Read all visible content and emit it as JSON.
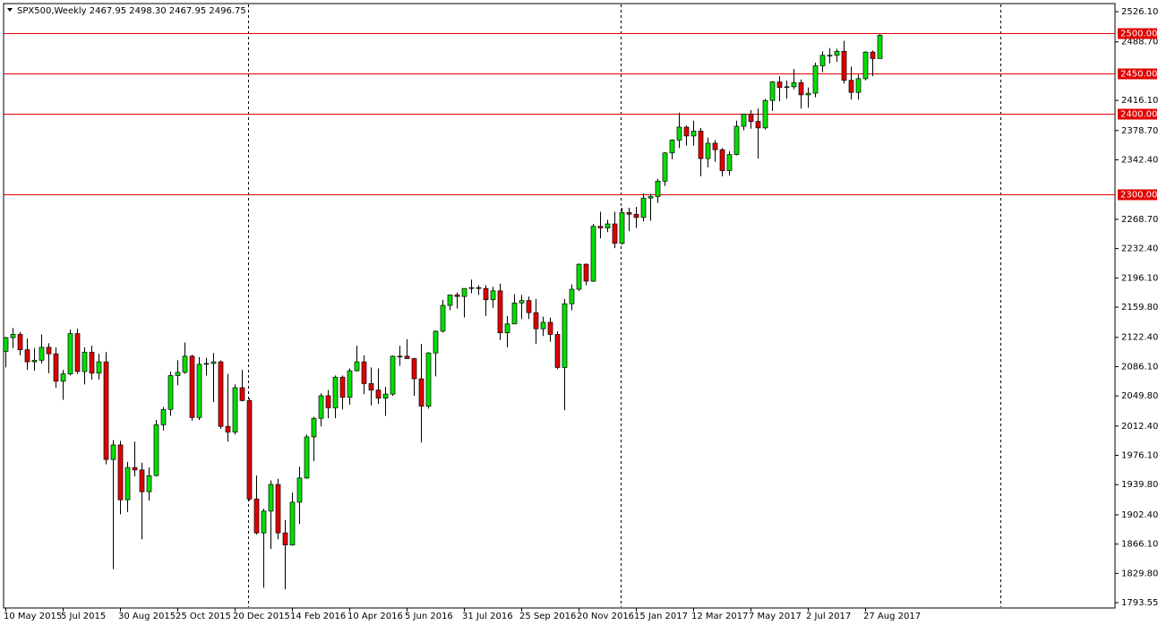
{
  "chart_data": {
    "type": "candlestick",
    "title": "SPX500,Weekly  2467.95 2498.30 2467.95 2496.75",
    "categories": [
      "10 May 2015",
      null,
      null,
      null,
      null,
      null,
      null,
      null,
      "5 Jul 2015",
      null,
      null,
      null,
      null,
      null,
      null,
      null,
      "30 Aug 2015",
      null,
      null,
      null,
      null,
      null,
      null,
      null,
      "25 Oct 2015",
      null,
      null,
      null,
      null,
      null,
      null,
      null,
      "20 Dec 2015",
      null,
      null,
      null,
      null,
      null,
      null,
      null,
      "14 Feb 2016",
      null,
      null,
      null,
      null,
      null,
      null,
      null,
      "10 Apr 2016",
      null,
      null,
      null,
      null,
      null,
      null,
      null,
      "5 Jun 2016",
      null,
      null,
      null,
      null,
      null,
      null,
      null,
      "31 Jul 2016",
      null,
      null,
      null,
      null,
      null,
      null,
      null,
      "25 Sep 2016",
      null,
      null,
      null,
      null,
      null,
      null,
      null,
      "20 Nov 2016",
      null,
      null,
      null,
      null,
      null,
      null,
      null,
      "15 Jan 2017",
      null,
      null,
      null,
      null,
      null,
      null,
      null,
      "12 Mar 2017",
      null,
      null,
      null,
      null,
      null,
      null,
      null,
      "7 May 2017",
      null,
      null,
      null,
      null,
      null,
      null,
      null,
      "2 Jul 2017",
      null,
      null,
      null,
      null,
      null,
      null,
      null,
      "27 Aug 2017",
      null,
      null
    ],
    "open": [
      2105,
      2122,
      2126,
      2107,
      2092,
      2094,
      2110,
      2102,
      2068,
      2077,
      2127,
      2080,
      2104,
      2078,
      2092,
      1971,
      1989,
      1921,
      1961,
      1958,
      1931,
      1951,
      2014,
      2033,
      2075,
      2079,
      2099,
      2023,
      2089,
      2090,
      2092,
      2012,
      2005,
      2060,
      2044,
      1922,
      1880,
      1907,
      1940,
      1880,
      1865,
      1918,
      1948,
      1999,
      2022,
      2050,
      2035,
      2073,
      2048,
      2081,
      2092,
      2065,
      2057,
      2047,
      2052,
      2099,
      2099,
      2096,
      2071,
      2037,
      2103,
      2130,
      2162,
      2175,
      2173,
      2183,
      2184,
      2183,
      2169,
      2180,
      2128,
      2139,
      2165,
      2168,
      2153,
      2133,
      2141,
      2126,
      2085,
      2164,
      2182,
      2213,
      2192,
      2260,
      2258,
      2263,
      2239,
      2277,
      2275,
      2271,
      2295,
      2297,
      2316,
      2351,
      2367,
      2383,
      2372,
      2378,
      2344,
      2363,
      2355,
      2329,
      2349,
      2384,
      2399,
      2390,
      2382,
      2416,
      2439,
      2432,
      2433,
      2438,
      2423,
      2425,
      2459,
      2472,
      2472,
      2477,
      2441,
      2426,
      2443,
      2476,
      2467.95
    ],
    "high": [
      2123,
      2134,
      2129,
      2121,
      2109,
      2126,
      2115,
      2110,
      2082,
      2132,
      2133,
      2110,
      2112,
      2102,
      2104,
      1995,
      1994,
      1968,
      1993,
      1967,
      1961,
      2020,
      2036,
      2080,
      2094,
      2116,
      2101,
      2098,
      2097,
      2103,
      2094,
      2077,
      2064,
      2082,
      2047,
      1951,
      1910,
      1945,
      1947,
      1896,
      1930,
      1962,
      2002,
      2024,
      2053,
      2057,
      2075,
      2075,
      2084,
      2112,
      2100,
      2085,
      2084,
      2061,
      2100,
      2112,
      2120,
      2097,
      2114,
      2104,
      2131,
      2169,
      2175,
      2178,
      2183,
      2194,
      2187,
      2187,
      2185,
      2189,
      2149,
      2176,
      2175,
      2173,
      2170,
      2148,
      2147,
      2130,
      2170,
      2188,
      2214,
      2214,
      2263,
      2278,
      2268,
      2278,
      2283,
      2283,
      2284,
      2301,
      2300,
      2319,
      2352,
      2368,
      2401,
      2385,
      2391,
      2382,
      2370,
      2367,
      2357,
      2353,
      2391,
      2399,
      2404,
      2406,
      2418,
      2440,
      2446,
      2441,
      2455,
      2442,
      2432,
      2463,
      2477,
      2481,
      2480,
      2490,
      2458,
      2448,
      2477,
      2478,
      2498.3
    ],
    "low": [
      2085,
      2109,
      2100,
      2082,
      2081,
      2090,
      2078,
      2060,
      2045,
      2075,
      2077,
      2064,
      2070,
      2070,
      1965,
      1835,
      1903,
      1906,
      1950,
      1872,
      1920,
      1950,
      2007,
      2025,
      2063,
      2077,
      2019,
      2020,
      2075,
      2042,
      2009,
      1993,
      2002,
      2043,
      1920,
      1878,
      1812,
      1860,
      1872,
      1810,
      1864,
      1891,
      1947,
      1969,
      2012,
      2022,
      2022,
      2033,
      2039,
      2080,
      2052,
      2038,
      2040,
      2025,
      2050,
      2087,
      2096,
      2050,
      1992,
      2034,
      2074,
      2128,
      2156,
      2158,
      2147,
      2177,
      2175,
      2149,
      2159,
      2119,
      2110,
      2139,
      2145,
      2145,
      2114,
      2124,
      2117,
      2083,
      2032,
      2156,
      2180,
      2187,
      2191,
      2245,
      2253,
      2233,
      2237,
      2254,
      2258,
      2266,
      2267,
      2289,
      2310,
      2343,
      2357,
      2360,
      2360,
      2322,
      2333,
      2340,
      2322,
      2323,
      2348,
      2379,
      2381,
      2344,
      2380,
      2403,
      2415,
      2418,
      2430,
      2406,
      2407,
      2420,
      2451,
      2462,
      2464,
      2437,
      2417,
      2417,
      2441,
      2446,
      2467.95
    ],
    "close": [
      2122,
      2126,
      2107,
      2092,
      2094,
      2110,
      2102,
      2068,
      2077,
      2127,
      2080,
      2104,
      2078,
      2092,
      1971,
      1989,
      1921,
      1961,
      1958,
      1931,
      1951,
      2014,
      2033,
      2075,
      2079,
      2099,
      2023,
      2089,
      2090,
      2092,
      2012,
      2005,
      2060,
      2044,
      1922,
      1880,
      1907,
      1940,
      1880,
      1865,
      1918,
      1948,
      1999,
      2022,
      2050,
      2035,
      2073,
      2048,
      2081,
      2092,
      2065,
      2057,
      2047,
      2052,
      2099,
      2099,
      2096,
      2071,
      2037,
      2103,
      2130,
      2162,
      2175,
      2173,
      2183,
      2184,
      2183,
      2169,
      2180,
      2128,
      2139,
      2165,
      2168,
      2153,
      2133,
      2141,
      2126,
      2085,
      2164,
      2182,
      2213,
      2192,
      2260,
      2258,
      2263,
      2239,
      2277,
      2275,
      2271,
      2295,
      2297,
      2316,
      2351,
      2367,
      2383,
      2372,
      2378,
      2344,
      2363,
      2355,
      2329,
      2349,
      2384,
      2399,
      2390,
      2382,
      2416,
      2439,
      2432,
      2433,
      2438,
      2423,
      2425,
      2459,
      2472,
      2472,
      2477,
      2441,
      2426,
      2443,
      2476,
      2467.95,
      2496.75
    ],
    "up_color": "#00e000",
    "down_color": "#e00000",
    "ylim": [
      1788,
      2535
    ],
    "yticks": [
      {
        "value": 2526.1,
        "label": "2526.10"
      },
      {
        "value": 2488.7,
        "label": "2488.70"
      },
      {
        "value": 2416.1,
        "label": "2416.10"
      },
      {
        "value": 2378.7,
        "label": "2378.70"
      },
      {
        "value": 2342.4,
        "label": "2342.40"
      },
      {
        "value": 2268.7,
        "label": "2268.70"
      },
      {
        "value": 2232.4,
        "label": "2232.40"
      },
      {
        "value": 2196.1,
        "label": "2196.10"
      },
      {
        "value": 2159.8,
        "label": "2159.80"
      },
      {
        "value": 2122.4,
        "label": "2122.40"
      },
      {
        "value": 2086.1,
        "label": "2086.10"
      },
      {
        "value": 2049.8,
        "label": "2049.80"
      },
      {
        "value": 2012.4,
        "label": "2012.40"
      },
      {
        "value": 1976.1,
        "label": "1976.10"
      },
      {
        "value": 1939.8,
        "label": "1939.80"
      },
      {
        "value": 1902.4,
        "label": "1902.40"
      },
      {
        "value": 1866.1,
        "label": "1866.10"
      },
      {
        "value": 1829.8,
        "label": "1829.80"
      },
      1793.55
    ],
    "hlines": [
      {
        "value": 2500,
        "label": "2500.00"
      },
      {
        "value": 2450,
        "label": "2450.00"
      },
      {
        "value": 2400,
        "label": "2400.00"
      },
      {
        "value": 2300,
        "label": "2300.00"
      }
    ],
    "hline_color": "#e00000"
  }
}
